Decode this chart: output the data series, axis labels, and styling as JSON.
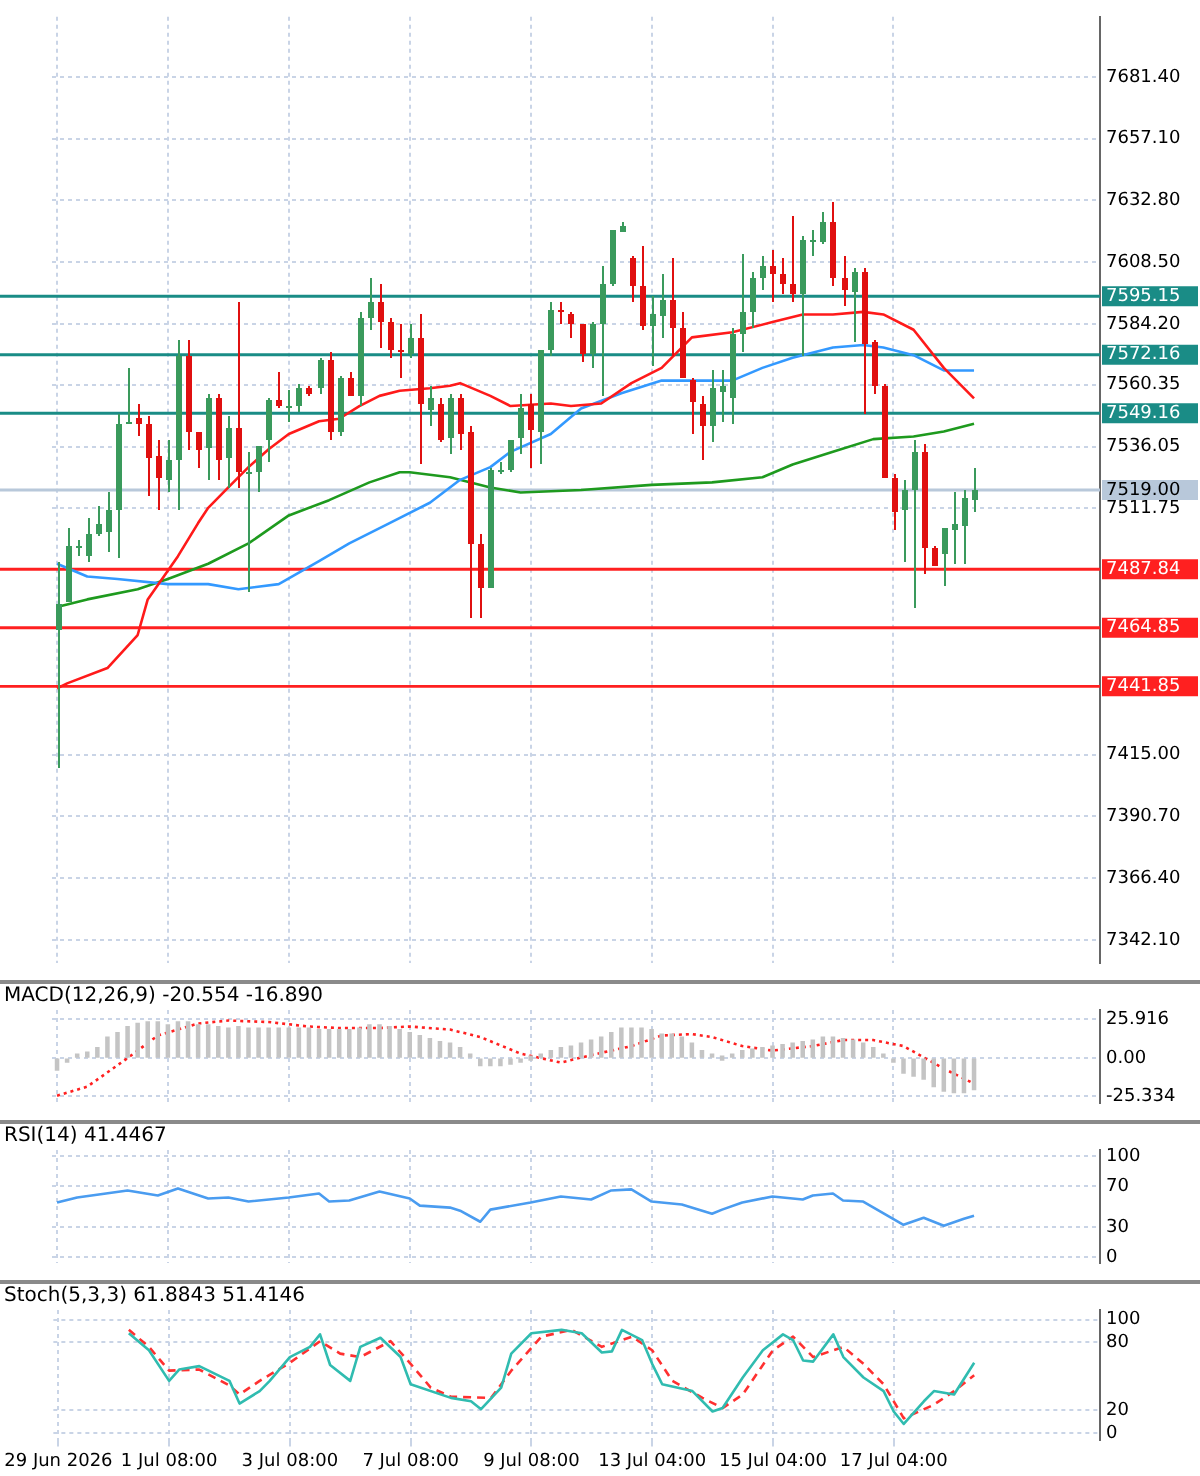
{
  "chart_data": [
    {
      "type": "candlestick",
      "categories": [
        null,
        null,
        null,
        null,
        null,
        null,
        null,
        null,
        null,
        null,
        null,
        null,
        null,
        null,
        null,
        null,
        null,
        null,
        null,
        null,
        null,
        null,
        null,
        null,
        null,
        null,
        null,
        null,
        null,
        null,
        null,
        null,
        null,
        null,
        null,
        null,
        null,
        null,
        null,
        null,
        null,
        null,
        null,
        null,
        null,
        null,
        null,
        null,
        null,
        null,
        null,
        null,
        null,
        null,
        null,
        null,
        null,
        null,
        null,
        null,
        null,
        null,
        null,
        null,
        null,
        null,
        null,
        null,
        null,
        null,
        null,
        null,
        null,
        null,
        null,
        null,
        null,
        null,
        null,
        null,
        null,
        null,
        null,
        null,
        null,
        null,
        null,
        null,
        null,
        null,
        null,
        null,
        null,
        null,
        null,
        null,
        null,
        null,
        null,
        null,
        null,
        null,
        null,
        null
      ],
      "ohlc": [
        [
          7464,
          7491,
          7410,
          7474
        ],
        [
          7475,
          7504,
          7475,
          7497
        ],
        [
          7496,
          7499,
          7493,
          7497
        ],
        [
          7493,
          7508,
          7491,
          7502
        ],
        [
          7502,
          7513,
          7501,
          7506
        ],
        [
          7502,
          7518,
          7495,
          7511
        ],
        [
          7511,
          7549,
          7492,
          7545
        ],
        [
          7545,
          7567,
          7545,
          7546
        ],
        [
          7547,
          7553,
          7540,
          7545
        ],
        [
          7545,
          7548,
          7517,
          7532
        ],
        [
          7532,
          7539,
          7511,
          7523
        ],
        [
          7523,
          7539,
          7518,
          7531
        ],
        [
          7531,
          7578,
          7511,
          7572
        ],
        [
          7572,
          7578,
          7535,
          7542
        ],
        [
          7542,
          7542,
          7528,
          7535
        ],
        [
          7535,
          7557,
          7523,
          7555
        ],
        [
          7555,
          7557,
          7523,
          7531
        ],
        [
          7531,
          7548,
          7520,
          7543
        ],
        [
          7543,
          7593,
          7520,
          7526
        ],
        [
          7526,
          7534,
          7479,
          7526
        ],
        [
          7526,
          7536,
          7518,
          7536
        ],
        [
          7538,
          7555,
          7530,
          7554
        ],
        [
          7554,
          7565,
          7551,
          7552
        ],
        [
          7552,
          7558,
          7546,
          7552
        ],
        [
          7552,
          7561,
          7550,
          7559
        ],
        [
          7559,
          7560,
          7556,
          7557
        ],
        [
          7559,
          7571,
          7557,
          7570
        ],
        [
          7570,
          7573,
          7539,
          7542
        ],
        [
          7542,
          7564,
          7540,
          7563
        ],
        [
          7563,
          7565,
          7556,
          7556
        ],
        [
          7556,
          7589,
          7552,
          7587
        ],
        [
          7587,
          7602,
          7582,
          7593
        ],
        [
          7593,
          7600,
          7575,
          7585
        ],
        [
          7585,
          7587,
          7571,
          7574
        ],
        [
          7574,
          7584,
          7563,
          7573
        ],
        [
          7573,
          7584,
          7571,
          7579
        ],
        [
          7579,
          7588,
          7529,
          7553
        ],
        [
          7550,
          7560,
          7544,
          7555
        ],
        [
          7553,
          7555,
          7538,
          7539
        ],
        [
          7539,
          7557,
          7533,
          7555
        ],
        [
          7555,
          7557,
          7535,
          7541
        ],
        [
          7542,
          7544,
          7469,
          7498
        ],
        [
          7498,
          7502,
          7469,
          7481
        ],
        [
          7481,
          7528,
          7481,
          7527
        ],
        [
          7527,
          7530,
          7525,
          7527
        ],
        [
          7527,
          7539,
          7526,
          7539
        ],
        [
          7539,
          7557,
          7533,
          7551
        ],
        [
          7553,
          7557,
          7528,
          7543
        ],
        [
          7542,
          7574,
          7529,
          7574
        ],
        [
          7574,
          7593,
          7572,
          7590
        ],
        [
          7590,
          7593,
          7584,
          7589
        ],
        [
          7588,
          7589,
          7579,
          7584
        ],
        [
          7584,
          7584,
          7569,
          7572
        ],
        [
          7572,
          7585,
          7567,
          7584
        ],
        [
          7584,
          7607,
          7556,
          7600
        ],
        [
          7600,
          7621,
          7599,
          7621
        ],
        [
          7621,
          7624,
          7621,
          7623
        ],
        [
          7610,
          7611,
          7593,
          7599
        ],
        [
          7599,
          7615,
          7582,
          7583
        ],
        [
          7583,
          7595,
          7568,
          7588
        ],
        [
          7588,
          7604,
          7579,
          7594
        ],
        [
          7594,
          7610,
          7572,
          7583
        ],
        [
          7583,
          7589,
          7563,
          7563
        ],
        [
          7562,
          7563,
          7541,
          7553
        ],
        [
          7553,
          7556,
          7531,
          7544
        ],
        [
          7544,
          7566,
          7538,
          7559
        ],
        [
          7558,
          7566,
          7546,
          7560
        ],
        [
          7555,
          7583,
          7545,
          7580
        ],
        [
          7580,
          7612,
          7573,
          7589
        ],
        [
          7589,
          7605,
          7583,
          7602
        ],
        [
          7602,
          7611,
          7598,
          7607
        ],
        [
          7607,
          7613,
          7593,
          7604
        ],
        [
          7604,
          7610,
          7596,
          7600
        ],
        [
          7600,
          7627,
          7593,
          7596
        ],
        [
          7596,
          7619,
          7572,
          7617
        ],
        [
          7616,
          7621,
          7611,
          7617
        ],
        [
          7616,
          7628,
          7616,
          7624
        ],
        [
          7624,
          7632,
          7599,
          7602
        ],
        [
          7602,
          7611,
          7591,
          7597
        ],
        [
          7597,
          7606,
          7577,
          7605
        ],
        [
          7605,
          7606,
          7549,
          7577
        ],
        [
          7577,
          7578,
          7557,
          7560
        ],
        [
          7560,
          7561,
          7524,
          7524
        ],
        [
          7524,
          7525,
          7503,
          7511
        ],
        [
          7511,
          7523,
          7491,
          7519
        ],
        [
          7519,
          7539,
          7473,
          7534
        ],
        [
          7534,
          7537,
          7486,
          7496
        ],
        [
          7496,
          7497,
          7489,
          7489
        ],
        [
          7494,
          7504,
          7481,
          7504
        ],
        [
          7504,
          7518,
          7490,
          7506
        ],
        [
          7505,
          7519,
          7490,
          7516
        ],
        [
          7515,
          7528,
          7510,
          7519
        ],
        null,
        null,
        null,
        null,
        null,
        null,
        null,
        null,
        null,
        null,
        null,
        null
      ],
      "colors": [
        "#3a9a5c",
        "#3a9a5c",
        "#3a9a5c",
        "#3a9a5c",
        "#3a9a5c",
        "#3a9a5c",
        "#3a9a5c",
        "#3a9a5c",
        "#e01010",
        "#e01010",
        "#e01010",
        "#3a9a5c",
        "#3a9a5c",
        "#e01010",
        "#e01010",
        "#3a9a5c",
        "#e01010",
        "#3a9a5c",
        "#e01010",
        "#3a9a5c",
        "#3a9a5c",
        "#3a9a5c",
        "#e01010",
        "#3a9a5c",
        "#3a9a5c",
        "#e01010",
        "#3a9a5c",
        "#e01010",
        "#3a9a5c",
        "#e01010",
        "#3a9a5c",
        "#3a9a5c",
        "#e01010",
        "#e01010",
        "#e01010",
        "#3a9a5c",
        "#e01010",
        "#3a9a5c",
        "#e01010",
        "#3a9a5c",
        "#e01010",
        "#e01010",
        "#e01010",
        "#3a9a5c",
        "#3a9a5c",
        "#3a9a5c",
        "#3a9a5c",
        "#e01010",
        "#3a9a5c",
        "#3a9a5c",
        "#e01010",
        "#e01010",
        "#e01010",
        "#3a9a5c",
        "#3a9a5c",
        "#3a9a5c",
        "#3a9a5c",
        "#e01010",
        "#e01010",
        "#3a9a5c",
        "#3a9a5c",
        "#e01010",
        "#e01010",
        "#e01010",
        "#e01010",
        "#3a9a5c",
        "#3a9a5c",
        "#3a9a5c",
        "#3a9a5c",
        "#3a9a5c",
        "#3a9a5c",
        "#e01010",
        "#e01010",
        "#e01010",
        "#3a9a5c",
        "#3a9a5c",
        "#3a9a5c",
        "#e01010",
        "#e01010",
        "#3a9a5c",
        "#e01010",
        "#e01010",
        "#e01010",
        "#e01010",
        "#3a9a5c",
        "#3a9a5c",
        "#e01010",
        "#e01010",
        "#3a9a5c",
        "#3a9a5c",
        "#3a9a5c",
        "#3a9a5c",
        null,
        null,
        null,
        null,
        null,
        null,
        null,
        null,
        null,
        null,
        null,
        null
      ],
      "series": [
        {
          "type": "line",
          "color": "#ff1a1a",
          "values": [
            7441,
            7443,
            null,
            null,
            null,
            7449,
            null,
            null,
            7462,
            7476,
            null,
            null,
            7493,
            null,
            7506,
            7512,
            null,
            7520,
            null,
            7528,
            null,
            7535,
            null,
            7541,
            null,
            null,
            7546,
            null,
            7547,
            null,
            7552,
            null,
            7556,
            null,
            7558,
            null,
            null,
            7559,
            null,
            7560,
            7561,
            null,
            null,
            7556,
            null,
            7552,
            null,
            null,
            null,
            7553,
            null,
            7552,
            null,
            null,
            7553,
            null,
            null,
            7561,
            null,
            null,
            7567,
            null,
            null,
            7579,
            null,
            null,
            null,
            7581,
            null,
            null,
            null,
            7585,
            null,
            null,
            7588,
            null,
            null,
            7588,
            null,
            null,
            7589,
            null,
            7588,
            null,
            null,
            7582,
            null,
            null,
            7567,
            null,
            null,
            7555,
            null,
            null,
            null,
            null,
            null,
            null,
            null,
            null,
            null,
            null,
            null,
            null
          ]
        },
        {
          "type": "line",
          "color": "#3399ff",
          "values": [
            7490,
            null,
            null,
            7485,
            null,
            null,
            7484,
            null,
            null,
            null,
            null,
            7482,
            null,
            null,
            null,
            7482,
            null,
            null,
            7480,
            null,
            null,
            null,
            7482,
            null,
            null,
            null,
            7491,
            null,
            null,
            7498,
            null,
            null,
            null,
            7506,
            null,
            null,
            null,
            7514,
            null,
            null,
            7523,
            null,
            null,
            7528,
            null,
            7534,
            null,
            null,
            null,
            7541,
            null,
            null,
            7551,
            null,
            null,
            null,
            7557,
            null,
            null,
            null,
            7562,
            null,
            null,
            7562,
            null,
            null,
            null,
            7562,
            null,
            null,
            7567,
            null,
            null,
            7571,
            null,
            null,
            null,
            7575,
            null,
            null,
            7576,
            null,
            7575,
            null,
            null,
            7572,
            null,
            null,
            7566,
            null,
            null,
            7566,
            null,
            null,
            null,
            null,
            null,
            null,
            null,
            null,
            null,
            null,
            null,
            null
          ]
        },
        {
          "type": "line",
          "color": "#1e9a1e",
          "values": [
            7473,
            null,
            null,
            7476,
            null,
            null,
            null,
            null,
            7480,
            null,
            null,
            7484,
            null,
            null,
            null,
            7490,
            null,
            null,
            null,
            7498,
            null,
            null,
            null,
            7509,
            null,
            null,
            null,
            7515,
            null,
            null,
            null,
            7522,
            null,
            null,
            7526,
            7526,
            null,
            null,
            null,
            7524,
            null,
            null,
            null,
            7520,
            null,
            null,
            7518,
            null,
            null,
            null,
            null,
            null,
            7519,
            null,
            null,
            null,
            null,
            null,
            null,
            7521,
            null,
            null,
            null,
            null,
            null,
            7522,
            null,
            null,
            null,
            null,
            7524,
            null,
            null,
            7529,
            null,
            null,
            null,
            7534,
            null,
            null,
            null,
            7539,
            null,
            null,
            null,
            7540,
            null,
            null,
            7542,
            null,
            null,
            7545,
            null,
            null,
            null,
            null,
            null,
            null,
            null,
            null,
            null,
            null,
            null,
            null
          ]
        }
      ],
      "ylim": [
        7333,
        7705
      ],
      "yticks": [
        {
          "value": 7342.1,
          "label": "7342.10"
        },
        {
          "value": 7366.4,
          "label": "7366.40"
        },
        {
          "value": 7390.7,
          "label": "7390.70"
        },
        {
          "value": 7415,
          "label": "7415.00"
        },
        {
          "value": 7511.75,
          "label": "7511.75"
        },
        {
          "value": 7536.05,
          "label": "7536.05"
        },
        {
          "value": 7560.35,
          "label": "7560.35"
        },
        {
          "value": 7584.2,
          "label": "7584.20"
        },
        {
          "value": 7608.5,
          "label": "7608.50"
        },
        {
          "value": 7632.8,
          "label": "7632.80"
        },
        {
          "value": 7657.1,
          "label": "7657.10"
        },
        {
          "value": 7681.4,
          "label": "7681.40"
        }
      ],
      "ref_lines": [
        {
          "axis": "y",
          "value": 7595.15,
          "label": "7595.15",
          "color": "#1a8c86"
        },
        {
          "axis": "y",
          "value": 7572.16,
          "label": "7572.16",
          "color": "#1a8c86"
        },
        {
          "axis": "y",
          "value": 7549.16,
          "label": "7549.16",
          "color": "#1a8c86"
        },
        {
          "axis": "y",
          "value": 7519,
          "label": "7519.00",
          "color": "#b8c8da"
        },
        {
          "axis": "y",
          "value": 7487.84,
          "label": "7487.84",
          "color": "#ff2020"
        },
        {
          "axis": "y",
          "value": 7464.85,
          "label": "7464.85",
          "color": "#ff2020"
        },
        {
          "axis": "y",
          "value": 7441.85,
          "label": "7441.85",
          "color": "#ff2020"
        }
      ],
      "grid": true,
      "tick_labels": "y"
    },
    {
      "type": "bar",
      "title": "MACD(12,26,9) -20.554 -16.890",
      "categories": [
        null,
        null,
        null,
        null,
        null,
        null,
        null,
        null,
        null,
        null,
        null,
        null,
        null,
        null,
        null,
        null,
        null,
        null,
        null,
        null,
        null,
        null,
        null,
        null,
        null,
        null,
        null,
        null,
        null,
        null,
        null,
        null,
        null,
        null,
        null,
        null,
        null,
        null,
        null,
        null,
        null,
        null,
        null,
        null,
        null,
        null,
        null,
        null,
        null,
        null,
        null,
        null,
        null,
        null,
        null,
        null,
        null,
        null,
        null,
        null,
        null,
        null,
        null,
        null,
        null,
        null,
        null,
        null,
        null,
        null,
        null,
        null,
        null,
        null,
        null,
        null,
        null,
        null,
        null,
        null,
        null,
        null,
        null,
        null,
        null,
        null,
        null,
        null,
        null,
        null,
        null,
        null,
        null,
        null,
        null,
        null,
        null,
        null,
        null,
        null,
        null,
        null,
        null,
        null
      ],
      "series": [
        {
          "type": "bar",
          "color": "#c4c4c4",
          "values": [
            -8,
            -2,
            2,
            4,
            7,
            14,
            17,
            21,
            23,
            24,
            24,
            22,
            24,
            24,
            22,
            22,
            21,
            20,
            21,
            20,
            20,
            20,
            20,
            20,
            20,
            20,
            19,
            19,
            19,
            19,
            20,
            22,
            22,
            21,
            19,
            17,
            15,
            13,
            11,
            10,
            7,
            1,
            -5,
            -5,
            -5,
            -4,
            -2,
            0,
            2,
            5,
            7,
            8,
            10,
            12,
            14,
            17,
            20,
            20,
            20,
            19,
            16,
            16,
            14,
            10,
            5,
            2,
            0,
            2,
            5,
            6,
            7,
            8,
            9,
            10,
            11,
            12,
            14,
            14,
            13,
            12,
            10,
            7,
            2,
            -2,
            -10,
            -12,
            -14,
            -19,
            -22,
            -23,
            -23,
            -21,
            null,
            null,
            null,
            null,
            null,
            null,
            null,
            null,
            null,
            null,
            null,
            null
          ]
        },
        {
          "type": "line",
          "color": "#ff2020",
          "line_style": "dotted",
          "values": [
            -25,
            null,
            null,
            -19,
            null,
            null,
            null,
            0,
            null,
            null,
            15,
            null,
            null,
            null,
            23,
            null,
            null,
            25,
            null,
            null,
            null,
            24,
            null,
            null,
            null,
            21,
            null,
            null,
            20,
            null,
            null,
            null,
            20,
            null,
            null,
            21,
            null,
            null,
            null,
            19,
            null,
            null,
            14,
            null,
            null,
            null,
            3,
            null,
            null,
            null,
            -3,
            null,
            null,
            2,
            null,
            null,
            null,
            8,
            null,
            null,
            15,
            null,
            null,
            16,
            null,
            14,
            null,
            null,
            8,
            null,
            null,
            5,
            null,
            null,
            null,
            8,
            null,
            null,
            12,
            null,
            null,
            12,
            null,
            null,
            8,
            null,
            null,
            null,
            -7,
            null,
            null,
            -17,
            null,
            null,
            null,
            null,
            null,
            null,
            null,
            null,
            null,
            null,
            null,
            null
          ]
        }
      ],
      "ylim": [
        -30,
        32
      ],
      "yticks": [
        -25.334,
        {
          "value": 0,
          "label": "0.00"
        },
        25.916
      ],
      "grid": true,
      "tick_labels": "y"
    },
    {
      "type": "line",
      "title": "RSI(14) 41.4467",
      "categories": [
        null,
        null,
        null,
        null,
        null,
        null,
        null,
        null,
        null,
        null,
        null,
        null,
        null,
        null,
        null,
        null,
        null,
        null,
        null,
        null,
        null,
        null,
        null,
        null,
        null,
        null,
        null,
        null,
        null,
        null,
        null,
        null,
        null,
        null,
        null,
        null,
        null,
        null,
        null,
        null,
        null,
        null,
        null,
        null,
        null,
        null,
        null,
        null,
        null,
        null,
        null,
        null,
        null,
        null,
        null,
        null,
        null,
        null,
        null,
        null,
        null,
        null,
        null,
        null,
        null,
        null,
        null,
        null,
        null,
        null,
        null,
        null,
        null,
        null,
        null,
        null,
        null,
        null,
        null,
        null,
        null,
        null,
        null,
        null,
        null,
        null,
        null,
        null,
        null,
        null,
        null,
        null,
        null,
        null,
        null,
        null,
        null,
        null,
        null,
        null,
        null,
        null,
        null,
        null
      ],
      "series": [
        {
          "type": "line",
          "color": "#4a9cf0",
          "values": [
            54,
            null,
            59,
            null,
            null,
            null,
            null,
            66,
            null,
            null,
            61,
            null,
            68,
            null,
            null,
            58,
            null,
            59,
            null,
            55,
            null,
            null,
            null,
            59,
            null,
            null,
            63,
            55,
            null,
            56,
            null,
            null,
            65,
            null,
            null,
            58,
            51,
            null,
            null,
            49,
            46,
            null,
            35,
            47,
            null,
            null,
            null,
            54,
            null,
            null,
            60,
            null,
            null,
            57,
            null,
            66,
            null,
            67,
            null,
            55,
            null,
            null,
            52,
            null,
            null,
            43,
            47,
            null,
            54,
            null,
            null,
            60,
            null,
            null,
            57,
            61,
            null,
            63,
            56,
            null,
            55,
            null,
            null,
            null,
            32,
            null,
            39,
            null,
            31,
            null,
            38,
            41,
            null,
            null,
            null,
            null,
            null,
            null,
            null,
            null,
            null,
            null,
            null,
            null
          ]
        }
      ],
      "ylim": [
        -6,
        106
      ],
      "yticks": [
        0,
        30,
        70,
        100
      ],
      "grid": true,
      "tick_labels": "y"
    },
    {
      "type": "line",
      "title": "Stoch(5,3,3) 61.8843 51.4146",
      "categories": [
        "29 Jun 2026",
        null,
        null,
        null,
        null,
        null,
        null,
        null,
        null,
        null,
        null,
        "1 Jul 08:00",
        null,
        null,
        null,
        null,
        null,
        null,
        null,
        null,
        null,
        null,
        null,
        "3 Jul 08:00",
        null,
        null,
        null,
        null,
        null,
        null,
        null,
        null,
        null,
        null,
        null,
        "7 Jul 08:00",
        null,
        null,
        null,
        null,
        null,
        null,
        null,
        null,
        null,
        null,
        null,
        "9 Jul 08:00",
        null,
        null,
        null,
        null,
        null,
        null,
        null,
        null,
        null,
        null,
        null,
        "13 Jul 04:00",
        null,
        null,
        null,
        null,
        null,
        null,
        null,
        null,
        null,
        null,
        null,
        "15 Jul 04:00",
        null,
        null,
        null,
        null,
        null,
        null,
        null,
        null,
        null,
        null,
        null,
        "17 Jul 04:00",
        null,
        null,
        null,
        null,
        null,
        null,
        null,
        null,
        null,
        null,
        null,
        null,
        null,
        null,
        null,
        null,
        null,
        null,
        null,
        null
      ],
      "series": [
        {
          "type": "line",
          "color": "#30bcb0",
          "values": [
            null,
            null,
            null,
            null,
            null,
            null,
            null,
            88,
            null,
            73,
            null,
            46,
            56,
            null,
            59,
            null,
            null,
            46,
            26,
            null,
            37,
            46,
            null,
            67,
            null,
            76,
            87,
            60,
            null,
            46,
            76,
            null,
            84,
            null,
            67,
            43,
            null,
            null,
            null,
            31,
            null,
            28,
            21,
            null,
            40,
            70,
            null,
            88,
            null,
            null,
            91,
            null,
            88,
            null,
            71,
            72,
            91,
            null,
            82,
            61,
            43,
            null,
            null,
            37,
            null,
            19,
            22,
            null,
            49,
            null,
            73,
            null,
            87,
            82,
            64,
            63,
            null,
            87,
            67,
            null,
            49,
            null,
            37,
            19,
            8,
            null,
            28,
            37,
            null,
            34,
            null,
            62,
            null,
            null,
            null,
            null,
            null,
            null,
            null,
            null,
            null,
            null,
            null,
            null
          ]
        },
        {
          "type": "line",
          "color": "#ff3030",
          "line_style": "dashed",
          "values": [
            null,
            null,
            null,
            null,
            null,
            null,
            null,
            91,
            null,
            76,
            null,
            55,
            null,
            null,
            56,
            null,
            null,
            42,
            34,
            null,
            46,
            null,
            null,
            62,
            null,
            null,
            81,
            null,
            70,
            null,
            67,
            null,
            null,
            81,
            null,
            61,
            null,
            40,
            null,
            32,
            null,
            null,
            null,
            31,
            null,
            55,
            null,
            null,
            85,
            null,
            null,
            91,
            null,
            null,
            76,
            null,
            null,
            85,
            null,
            73,
            null,
            46,
            null,
            null,
            31,
            null,
            22,
            null,
            34,
            null,
            null,
            73,
            null,
            85,
            null,
            67,
            null,
            null,
            76,
            null,
            61,
            null,
            43,
            null,
            13,
            null,
            null,
            25,
            null,
            37,
            null,
            51,
            null,
            null,
            null,
            null,
            null,
            null,
            null,
            null,
            null,
            null,
            null,
            null
          ]
        }
      ],
      "ylim": [
        -6.5,
        108.5
      ],
      "yticks": [
        0,
        20,
        80,
        100
      ],
      "grid": true
    }
  ]
}
